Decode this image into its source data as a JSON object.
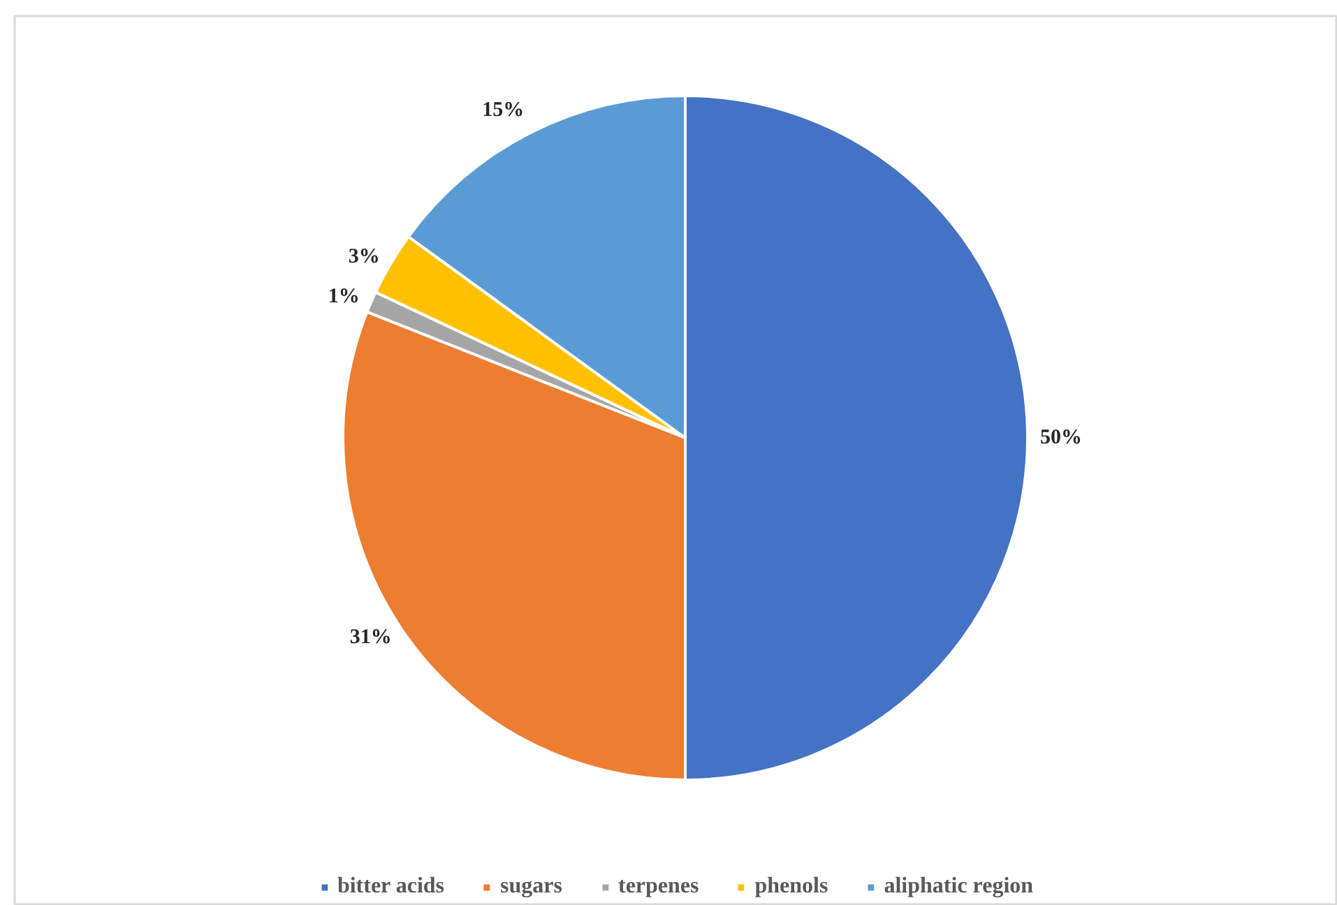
{
  "chart_data": {
    "type": "pie",
    "categories": [
      "bitter acids",
      "sugars",
      "terpenes",
      "phenols",
      "aliphatic region"
    ],
    "values": [
      50,
      31,
      1,
      3,
      15
    ],
    "colors": [
      "#4472c4",
      "#ed7d31",
      "#a5a5a5",
      "#ffc000",
      "#5b9bd5"
    ],
    "value_labels": [
      "50%",
      "31%",
      "1%",
      "3%",
      "15%"
    ],
    "legend": "bottom"
  }
}
